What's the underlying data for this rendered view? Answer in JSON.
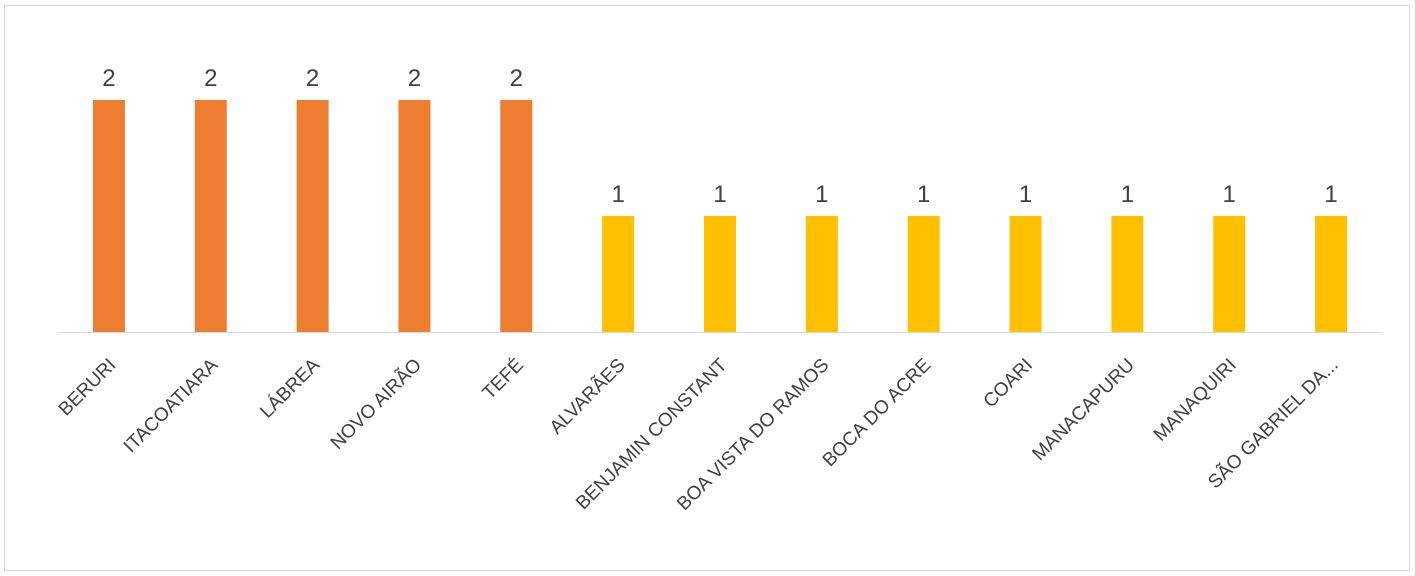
{
  "chart_data": {
    "type": "bar",
    "title": "",
    "xlabel": "",
    "ylabel": "",
    "categories": [
      "BERURI",
      "ITACOATIARA",
      "LÁBREA",
      "NOVO AIRÃO",
      "TEFÉ",
      "ALVARÃES",
      "BENJAMIN CONSTANT",
      "BOA VISTA DO RAMOS",
      "BOCA DO ACRE",
      "COARI",
      "MANACAPURU",
      "MANAQUIRI",
      "SÃO GABRIEL DA..."
    ],
    "values": [
      2,
      2,
      2,
      2,
      2,
      1,
      1,
      1,
      1,
      1,
      1,
      1,
      1
    ],
    "bar_colors": [
      "#ED7D31",
      "#ED7D31",
      "#ED7D31",
      "#ED7D31",
      "#ED7D31",
      "#FFC000",
      "#FFC000",
      "#FFC000",
      "#FFC000",
      "#FFC000",
      "#FFC000",
      "#FFC000",
      "#FFC000"
    ],
    "data_labels": [
      "2",
      "2",
      "2",
      "2",
      "2",
      "1",
      "1",
      "1",
      "1",
      "1",
      "1",
      "1",
      "1"
    ],
    "ylim": [
      0,
      2
    ],
    "grid": false,
    "legend": "none",
    "axis_color": "#d9d9d9",
    "label_color": "#404040"
  }
}
